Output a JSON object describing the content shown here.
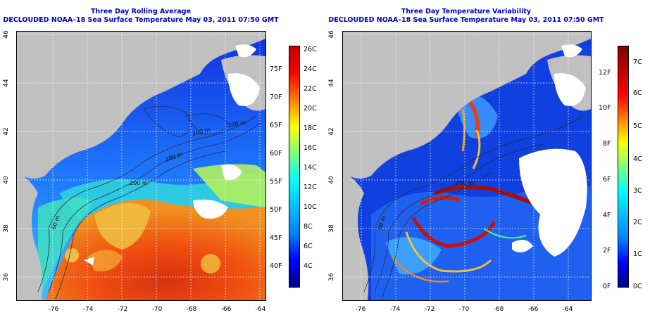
{
  "left_panel": {
    "title_line1": "Three Day Rolling Average",
    "title_line2": "DECLOUDED NOAA–18 Sea Surface Temperature May 03, 2011 07:50 GMT",
    "x_ticks": [
      "-76",
      "-74",
      "-72",
      "-70",
      "-68",
      "-66",
      "-64"
    ],
    "y_ticks": [
      "46",
      "44",
      "42",
      "40",
      "38",
      "36"
    ],
    "contour_labels": [
      "60 m",
      "200 m",
      "200 m",
      "200 m",
      "200 m"
    ],
    "colorbar": {
      "celsius_labels": [
        "26C",
        "24C",
        "22C",
        "20C",
        "18C",
        "16C",
        "14C",
        "12C",
        "10C",
        "8C",
        "6C",
        "4C"
      ],
      "fahrenheit_labels": [
        "75F",
        "70F",
        "65F",
        "60F",
        "55F",
        "50F",
        "45F",
        "40F"
      ],
      "gradient": [
        "#000080",
        "#0000ff",
        "#0080ff",
        "#00c0ff",
        "#00ffff",
        "#80ff80",
        "#ffff00",
        "#ff8000",
        "#ff0000",
        "#c00000"
      ]
    }
  },
  "right_panel": {
    "title_line1": "Three Day Temperature Variability",
    "title_line2": "DECLOUDED NOAA–18 Sea Surface Temperature May 03, 2011 07:50 GMT",
    "x_ticks": [
      "-76",
      "-74",
      "-72",
      "-70",
      "-68",
      "-66",
      "-64"
    ],
    "y_ticks": [
      "46",
      "44",
      "42",
      "40",
      "38",
      "36"
    ],
    "contour_labels": [
      "200 m",
      "60 m"
    ],
    "colorbar": {
      "celsius_labels": [
        "7C",
        "6C",
        "5C",
        "4C",
        "3C",
        "2C",
        "1C",
        "0C"
      ],
      "fahrenheit_labels": [
        "12F",
        "10F",
        "8F",
        "6F",
        "4F",
        "2F",
        "0F"
      ],
      "gradient": [
        "#000080",
        "#0000ff",
        "#0080ff",
        "#00c0ff",
        "#00ffff",
        "#80ff80",
        "#ffff00",
        "#ff8000",
        "#ff0000",
        "#c00000",
        "#800000"
      ]
    }
  },
  "colors": {
    "title": "#0000c0",
    "land": "#c0c0c0",
    "no_data": "#ffffff"
  }
}
